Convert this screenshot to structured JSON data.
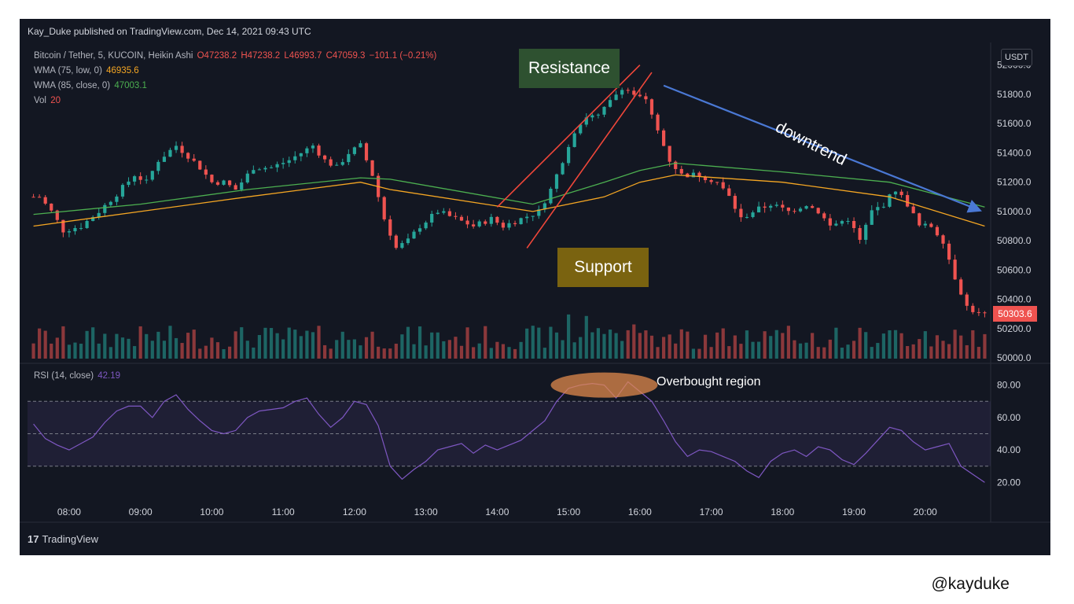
{
  "header": "Kay_Duke published on TradingView.com, Dec 14, 2021 09:43 UTC",
  "legend": {
    "symbol": "Bitcoin / Tether, 5, KUCOIN, Heikin Ashi",
    "ohlc": {
      "o": "O47238.2",
      "h": "H47238.2",
      "l": "L46993.7",
      "c": "C47059.3",
      "chg": "−101.1 (−0.21%)"
    },
    "wma75_label": "WMA (75, low, 0)",
    "wma75_value": "46935.6",
    "wma85_label": "WMA (85, close, 0)",
    "wma85_value": "47003.1",
    "vol_label": "Vol",
    "vol_value": "20",
    "rsi_label": "RSI (14, close)",
    "rsi_value": "42.19"
  },
  "currency_badge": "USDT",
  "last_price": "50303.6",
  "annotations": {
    "resistance": "Resistance",
    "support": "Support",
    "downtrend": "downtrend",
    "overbought": "Overbought region"
  },
  "footer": "TradingView",
  "watermark": "@kayduke",
  "colors": {
    "up": "#26a69a",
    "down": "#ef5350",
    "wma75": "#f5a623",
    "wma85": "#4caf50",
    "rsi": "#7e57c2",
    "trendline": "#f0473a",
    "downtrend": "#4a78d4"
  },
  "chart_data": {
    "type": "candlestick",
    "price_axis": {
      "ticks": [
        50000,
        50200,
        50400,
        50600,
        50800,
        51000,
        51200,
        51400,
        51600,
        51800,
        52000
      ],
      "tick_labels": [
        "50000.0",
        "50200.0",
        "50400.0",
        "50600.0",
        "50800.0",
        "51000.0",
        "51200.0",
        "51400.0",
        "51600.0",
        "51800.0",
        "52000.0"
      ]
    },
    "time_axis": {
      "labels": [
        "08:00",
        "09:00",
        "10:00",
        "11:00",
        "12:00",
        "13:00",
        "14:00",
        "15:00",
        "16:00",
        "17:00",
        "18:00",
        "19:00",
        "20:00"
      ]
    },
    "rsi_axis": {
      "ticks": [
        20,
        40,
        60,
        80
      ],
      "tick_labels": [
        "20.00",
        "40.00",
        "60.00",
        "80.00"
      ],
      "bands": [
        30,
        50,
        70
      ]
    },
    "close_path": [
      [
        "07:35",
        51100
      ],
      [
        "07:45",
        51000
      ],
      [
        "07:55",
        50870
      ],
      [
        "08:10",
        50900
      ],
      [
        "08:25",
        51000
      ],
      [
        "08:40",
        51120
      ],
      [
        "08:55",
        51250
      ],
      [
        "09:05",
        51200
      ],
      [
        "09:15",
        51350
      ],
      [
        "09:30",
        51450
      ],
      [
        "09:40",
        51380
      ],
      [
        "09:50",
        51300
      ],
      [
        "10:00",
        51200
      ],
      [
        "10:10",
        51200
      ],
      [
        "10:20",
        51150
      ],
      [
        "10:35",
        51300
      ],
      [
        "10:50",
        51300
      ],
      [
        "11:05",
        51350
      ],
      [
        "11:15",
        51400
      ],
      [
        "11:25",
        51450
      ],
      [
        "11:35",
        51350
      ],
      [
        "11:45",
        51300
      ],
      [
        "11:55",
        51400
      ],
      [
        "12:05",
        51450
      ],
      [
        "12:15",
        51250
      ],
      [
        "12:25",
        50950
      ],
      [
        "12:35",
        50750
      ],
      [
        "12:45",
        50800
      ],
      [
        "12:55",
        50900
      ],
      [
        "13:10",
        51000
      ],
      [
        "13:25",
        50950
      ],
      [
        "13:40",
        50900
      ],
      [
        "13:55",
        50950
      ],
      [
        "14:05",
        50900
      ],
      [
        "14:20",
        50950
      ],
      [
        "14:35",
        51000
      ],
      [
        "14:45",
        51150
      ],
      [
        "14:55",
        51350
      ],
      [
        "15:05",
        51550
      ],
      [
        "15:15",
        51650
      ],
      [
        "15:25",
        51650
      ],
      [
        "15:35",
        51750
      ],
      [
        "15:45",
        51850
      ],
      [
        "15:55",
        51800
      ],
      [
        "16:05",
        51750
      ],
      [
        "16:15",
        51550
      ],
      [
        "16:25",
        51350
      ],
      [
        "16:35",
        51250
      ],
      [
        "16:50",
        51250
      ],
      [
        "17:05",
        51200
      ],
      [
        "17:15",
        51100
      ],
      [
        "17:25",
        50950
      ],
      [
        "17:35",
        51000
      ],
      [
        "17:50",
        51050
      ],
      [
        "18:05",
        51000
      ],
      [
        "18:20",
        51050
      ],
      [
        "18:30",
        51000
      ],
      [
        "18:40",
        50900
      ],
      [
        "18:55",
        50950
      ],
      [
        "19:05",
        50800
      ],
      [
        "19:15",
        51000
      ],
      [
        "19:25",
        51050
      ],
      [
        "19:35",
        51150
      ],
      [
        "19:45",
        51050
      ],
      [
        "19:55",
        50900
      ],
      [
        "20:05",
        50900
      ],
      [
        "20:15",
        50800
      ],
      [
        "20:25",
        50550
      ],
      [
        "20:35",
        50350
      ],
      [
        "20:45",
        50300
      ]
    ],
    "wma75": [
      [
        "07:30",
        50900
      ],
      [
        "09:00",
        51000
      ],
      [
        "10:30",
        51100
      ],
      [
        "12:05",
        51200
      ],
      [
        "12:30",
        51150
      ],
      [
        "14:30",
        51000
      ],
      [
        "15:30",
        51100
      ],
      [
        "16:00",
        51200
      ],
      [
        "16:30",
        51250
      ],
      [
        "18:00",
        51200
      ],
      [
        "19:30",
        51100
      ],
      [
        "20:50",
        50900
      ]
    ],
    "wma85": [
      [
        "07:30",
        50980
      ],
      [
        "09:00",
        51050
      ],
      [
        "10:30",
        51150
      ],
      [
        "12:05",
        51230
      ],
      [
        "12:30",
        51220
      ],
      [
        "14:30",
        51050
      ],
      [
        "15:30",
        51200
      ],
      [
        "16:00",
        51280
      ],
      [
        "16:30",
        51330
      ],
      [
        "18:00",
        51270
      ],
      [
        "19:30",
        51200
      ],
      [
        "20:50",
        51030
      ]
    ],
    "rsi": [
      [
        "07:30",
        56
      ],
      [
        "07:40",
        47
      ],
      [
        "07:50",
        43
      ],
      [
        "08:00",
        40
      ],
      [
        "08:10",
        44
      ],
      [
        "08:20",
        48
      ],
      [
        "08:30",
        57
      ],
      [
        "08:40",
        64
      ],
      [
        "08:50",
        67
      ],
      [
        "09:00",
        67
      ],
      [
        "09:10",
        60
      ],
      [
        "09:20",
        70
      ],
      [
        "09:30",
        74
      ],
      [
        "09:40",
        65
      ],
      [
        "09:50",
        58
      ],
      [
        "10:00",
        52
      ],
      [
        "10:10",
        50
      ],
      [
        "10:20",
        52
      ],
      [
        "10:30",
        60
      ],
      [
        "10:40",
        64
      ],
      [
        "10:50",
        65
      ],
      [
        "11:00",
        66
      ],
      [
        "11:10",
        70
      ],
      [
        "11:20",
        72
      ],
      [
        "11:30",
        62
      ],
      [
        "11:40",
        54
      ],
      [
        "11:50",
        60
      ],
      [
        "12:00",
        70
      ],
      [
        "12:10",
        68
      ],
      [
        "12:20",
        55
      ],
      [
        "12:30",
        30
      ],
      [
        "12:40",
        22
      ],
      [
        "12:50",
        28
      ],
      [
        "13:00",
        33
      ],
      [
        "13:10",
        40
      ],
      [
        "13:20",
        42
      ],
      [
        "13:30",
        44
      ],
      [
        "13:40",
        38
      ],
      [
        "13:50",
        43
      ],
      [
        "14:00",
        40
      ],
      [
        "14:10",
        43
      ],
      [
        "14:20",
        46
      ],
      [
        "14:30",
        52
      ],
      [
        "14:40",
        58
      ],
      [
        "14:50",
        70
      ],
      [
        "15:00",
        78
      ],
      [
        "15:10",
        80
      ],
      [
        "15:20",
        81
      ],
      [
        "15:30",
        80
      ],
      [
        "15:40",
        72
      ],
      [
        "15:50",
        82
      ],
      [
        "16:00",
        76
      ],
      [
        "16:10",
        70
      ],
      [
        "16:20",
        58
      ],
      [
        "16:30",
        45
      ],
      [
        "16:40",
        36
      ],
      [
        "16:50",
        40
      ],
      [
        "17:00",
        39
      ],
      [
        "17:10",
        36
      ],
      [
        "17:20",
        33
      ],
      [
        "17:30",
        27
      ],
      [
        "17:40",
        23
      ],
      [
        "17:50",
        33
      ],
      [
        "18:00",
        38
      ],
      [
        "18:10",
        40
      ],
      [
        "18:20",
        36
      ],
      [
        "18:30",
        42
      ],
      [
        "18:40",
        40
      ],
      [
        "18:50",
        34
      ],
      [
        "19:00",
        31
      ],
      [
        "19:10",
        38
      ],
      [
        "19:20",
        46
      ],
      [
        "19:30",
        54
      ],
      [
        "19:40",
        52
      ],
      [
        "19:50",
        45
      ],
      [
        "20:00",
        40
      ],
      [
        "20:10",
        42
      ],
      [
        "20:20",
        44
      ],
      [
        "20:30",
        30
      ],
      [
        "20:40",
        25
      ],
      [
        "20:50",
        20
      ]
    ]
  }
}
